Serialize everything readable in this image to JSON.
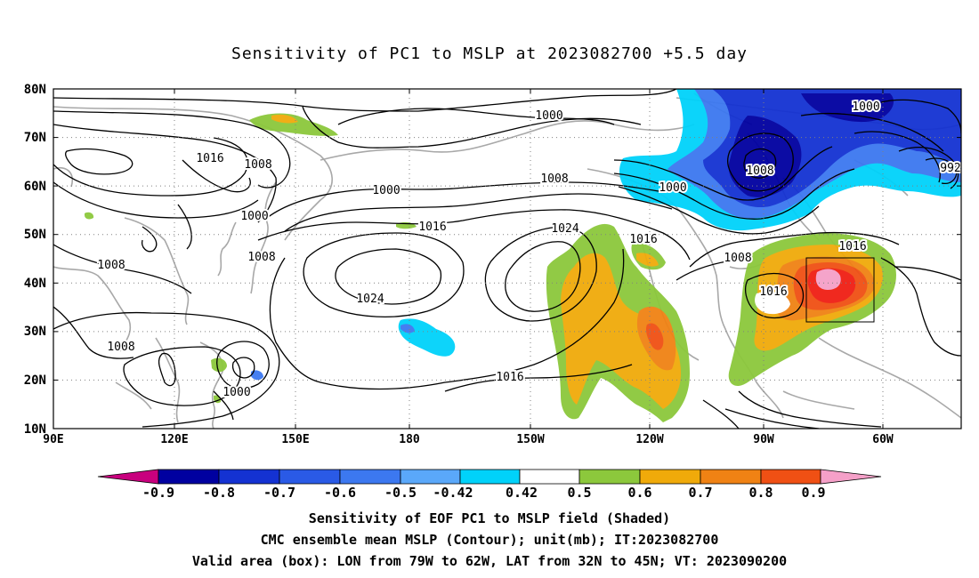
{
  "title": "Sensitivity of PC1 to MSLP at 2023082700 +5.5 day",
  "lat_labels": [
    "80N",
    "70N",
    "60N",
    "50N",
    "40N",
    "30N",
    "20N",
    "10N"
  ],
  "lon_labels": [
    "90E",
    "120E",
    "150E",
    "180",
    "150W",
    "120W",
    "90W",
    "60W"
  ],
  "colorbar": {
    "labels": [
      "-0.9",
      "-0.8",
      "-0.7",
      "-0.6",
      "-0.5",
      "-0.42",
      "0.42",
      "0.5",
      "0.6",
      "0.7",
      "0.8",
      "0.9"
    ],
    "colors": [
      "#c8007e",
      "#0000a0",
      "#1432d2",
      "#2a5ae6",
      "#3c78f0",
      "#5aa8fa",
      "#00d2fa",
      "#ffffff",
      "#8cc83c",
      "#f0aa0a",
      "#f08214",
      "#f05014",
      "#f01e14",
      "#f5a0c8"
    ]
  },
  "contour_labels": {
    "c1000a": "1000",
    "c1000b": "1000",
    "c1000c": "1000",
    "c1000d": "1000",
    "c1000e": "1000",
    "c1016a": "1016",
    "c1016b": "1016",
    "c1016c": "1016",
    "c1016d": "1016",
    "c1016e": "1016",
    "c1008a": "1008",
    "c1008b": "1008",
    "c1008c": "1008",
    "c1008d": "1008",
    "c1008e": "1008",
    "c1008f": "1008",
    "c1008g": "1008",
    "c1024a": "1024",
    "c1024b": "1024",
    "c992": "992"
  },
  "valid_box": {
    "lon": [
      "79W",
      "62W"
    ],
    "lat": [
      "32N",
      "45N"
    ]
  },
  "footer": [
    "Sensitivity of EOF PC1 to MSLP field (Shaded)",
    "CMC ensemble mean MSLP (Contour); unit(mb); IT:2023082700",
    "Valid area (box): LON from 79W to 62W, LAT from 32N to 45N; VT: 2023090200"
  ]
}
